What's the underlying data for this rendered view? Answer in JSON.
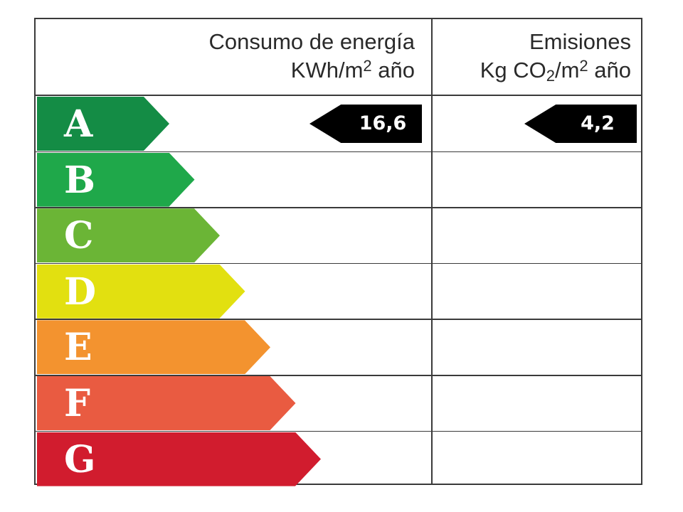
{
  "chart_data": {
    "type": "table",
    "title": "",
    "columns": [
      {
        "key": "energy",
        "line1": "Consumo de energía",
        "line2_main": "KWh/m",
        "line2_sup": "2",
        "line2_tail": " año"
      },
      {
        "key": "emission",
        "line1": "Emisiones",
        "line2_main": "Kg CO",
        "line2_sub": "2",
        "line2_mid": "/m",
        "line2_sup": "2",
        "line2_tail": " año"
      }
    ],
    "classes": [
      "A",
      "B",
      "C",
      "D",
      "E",
      "F",
      "G"
    ],
    "class_colors": [
      "#148c45",
      "#1fa84a",
      "#6bb536",
      "#e2e010",
      "#f3932f",
      "#e95b41",
      "#d11c2e"
    ],
    "ratings": {
      "energy": {
        "class": "A",
        "value": "16,6"
      },
      "emission": {
        "class": "A",
        "value": "4,2"
      }
    }
  }
}
